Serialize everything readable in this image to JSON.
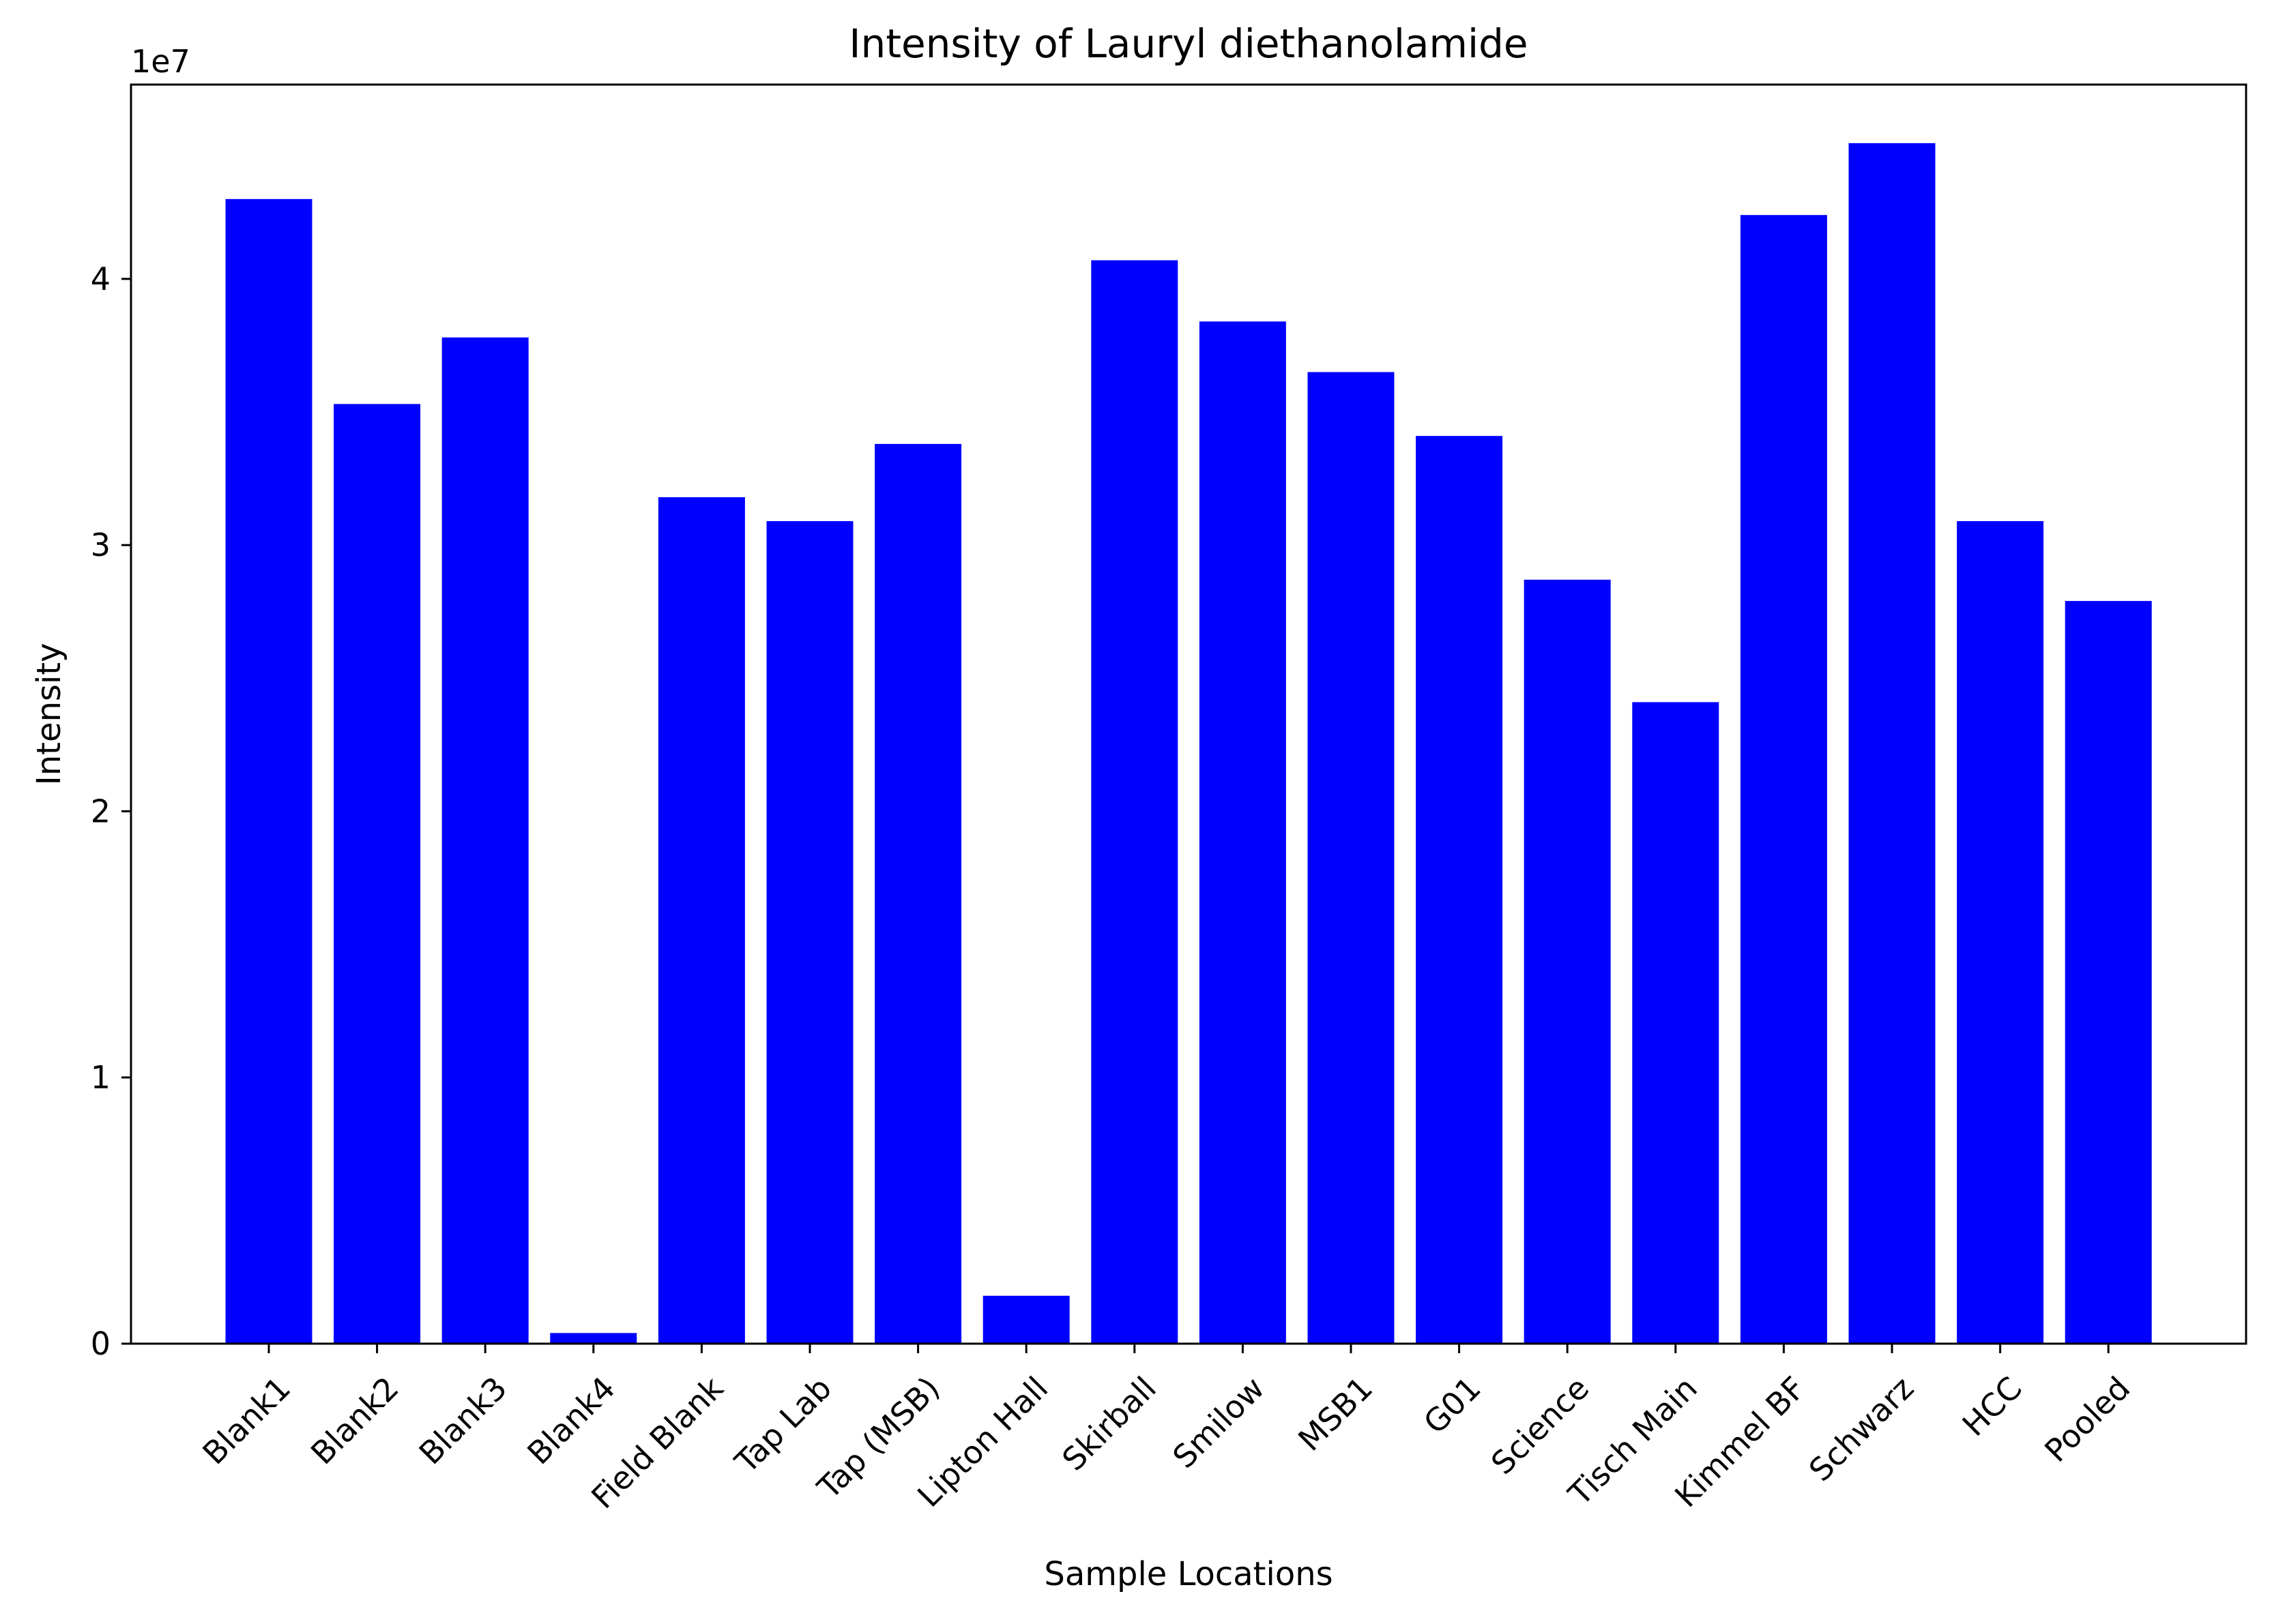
{
  "chart_data": {
    "type": "bar",
    "title": "Intensity of Lauryl diethanolamide",
    "xlabel": "Sample Locations",
    "ylabel": "Intensity",
    "y_offset_label": "1e7",
    "y_scale": 10000000,
    "ylim": [
      0,
      47300000
    ],
    "yticks": [
      0,
      10000000,
      20000000,
      30000000,
      40000000
    ],
    "ytick_labels": [
      "0",
      "1",
      "2",
      "3",
      "4"
    ],
    "grid": false,
    "bar_color": "#0000ff",
    "categories": [
      "Blank1",
      "Blank2",
      "Blank3",
      "Blank4",
      "Field Blank",
      "Tap Lab",
      "Tap (MSB)",
      "Lipton Hall",
      "Skirball",
      "Smilow",
      "MSB1",
      "G01",
      "Science",
      "Tisch Main",
      "Kimmel BF",
      "Schwarz",
      "HCC",
      "Pooled"
    ],
    "values": [
      43000000,
      35300000,
      37800000,
      400000,
      31800000,
      30900000,
      33800000,
      1800000,
      40700000,
      38400000,
      36500000,
      34100000,
      28700000,
      24100000,
      42400000,
      45100000,
      30900000,
      27900000
    ]
  }
}
